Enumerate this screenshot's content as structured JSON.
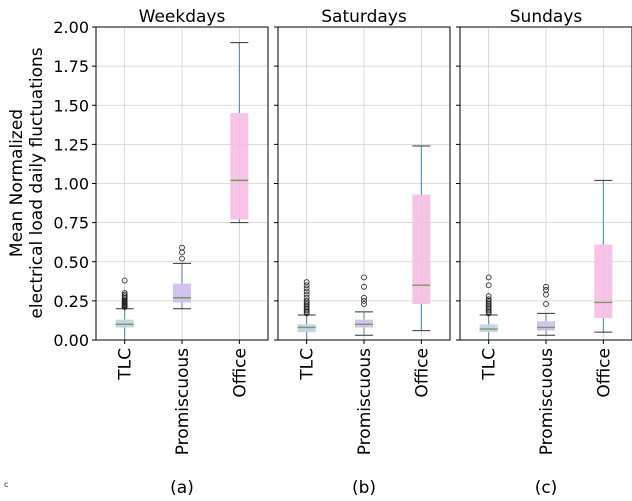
{
  "chart_data": {
    "type": "box",
    "ylabel_lines": [
      "Mean Normalized",
      "electrical load daily fluctuations"
    ],
    "ylim": [
      0,
      2.0
    ],
    "yticks": [
      "0.00",
      "0.25",
      "0.50",
      "0.75",
      "1.00",
      "1.25",
      "1.50",
      "1.75",
      "2.00"
    ],
    "grid": true,
    "categories": [
      "TLC",
      "Promiscuous",
      "Office"
    ],
    "colors": {
      "TLC": "#b8cce8",
      "Promiscuous": "#cdb8ee",
      "Office": "#f6b8e2",
      "whisker": "#3f86b5",
      "median": "#7a9c52"
    },
    "panels": [
      {
        "title": "Weekdays",
        "caption": "(a)",
        "boxes": [
          {
            "category": "TLC",
            "whislo": 0.0,
            "q1": 0.08,
            "med": 0.1,
            "q3": 0.13,
            "whishi": 0.2,
            "fliers": [
              0.21,
              0.215,
              0.22,
              0.225,
              0.23,
              0.235,
              0.24,
              0.245,
              0.25,
              0.26,
              0.27,
              0.28,
              0.29,
              0.3,
              0.38
            ]
          },
          {
            "category": "Promiscuous",
            "whislo": 0.2,
            "q1": 0.24,
            "med": 0.27,
            "q3": 0.36,
            "whishi": 0.49,
            "fliers": [
              0.52,
              0.56,
              0.59
            ]
          },
          {
            "category": "Office",
            "whislo": 0.75,
            "q1": 0.77,
            "med": 1.02,
            "q3": 1.45,
            "whishi": 1.9,
            "fliers": []
          }
        ]
      },
      {
        "title": "Saturdays",
        "caption": "(b)",
        "boxes": [
          {
            "category": "TLC",
            "whislo": 0.0,
            "q1": 0.05,
            "med": 0.08,
            "q3": 0.1,
            "whishi": 0.16,
            "fliers": [
              0.17,
              0.18,
              0.19,
              0.2,
              0.21,
              0.22,
              0.23,
              0.24,
              0.25,
              0.27,
              0.29,
              0.31,
              0.33,
              0.35,
              0.37
            ]
          },
          {
            "category": "Promiscuous",
            "whislo": 0.03,
            "q1": 0.08,
            "med": 0.1,
            "q3": 0.13,
            "whishi": 0.18,
            "fliers": [
              0.23,
              0.25,
              0.27,
              0.34,
              0.4
            ]
          },
          {
            "category": "Office",
            "whislo": 0.06,
            "q1": 0.23,
            "med": 0.35,
            "q3": 0.93,
            "whishi": 1.24,
            "fliers": []
          }
        ]
      },
      {
        "title": "Sundays",
        "caption": "(c)",
        "boxes": [
          {
            "category": "TLC",
            "whislo": 0.0,
            "q1": 0.05,
            "med": 0.07,
            "q3": 0.1,
            "whishi": 0.16,
            "fliers": [
              0.17,
              0.18,
              0.19,
              0.2,
              0.21,
              0.22,
              0.23,
              0.24,
              0.25,
              0.26,
              0.28,
              0.35,
              0.4
            ]
          },
          {
            "category": "Promiscuous",
            "whislo": 0.03,
            "q1": 0.06,
            "med": 0.08,
            "q3": 0.12,
            "whishi": 0.17,
            "fliers": [
              0.23,
              0.29,
              0.32,
              0.34
            ]
          },
          {
            "category": "Office",
            "whislo": 0.05,
            "q1": 0.14,
            "med": 0.24,
            "q3": 0.61,
            "whishi": 1.02,
            "fliers": []
          }
        ]
      }
    ]
  },
  "stray_mark": "c"
}
